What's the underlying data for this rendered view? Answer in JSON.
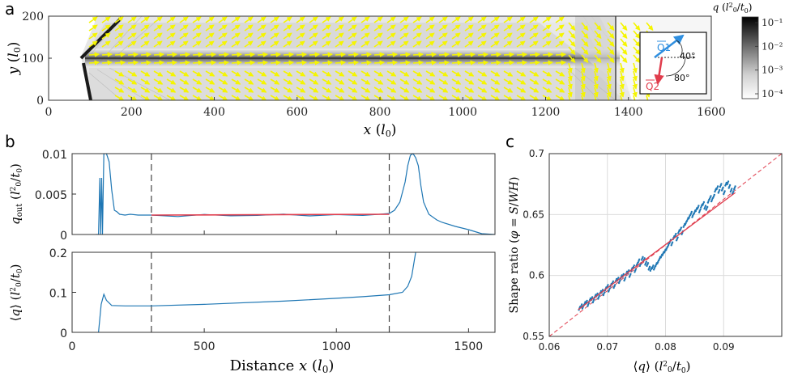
{
  "panels": {
    "a": {
      "letter": "a"
    },
    "b": {
      "letter": "b"
    },
    "c": {
      "letter": "c"
    }
  },
  "chart_data": [
    {
      "id": "a",
      "type": "heatmap",
      "xlabel": "x (l0)",
      "ylabel": "y (l0)",
      "xlim": [
        0,
        1600
      ],
      "ylim": [
        0,
        200
      ],
      "xticks": [
        "0",
        "200",
        "400",
        "600",
        "800",
        "1000",
        "1200",
        "1400",
        "1600"
      ],
      "yticks": [
        "0",
        "100",
        "200"
      ],
      "colorbar": {
        "label": "q (l0²/t0)",
        "scale": "log",
        "ticks": [
          "10⁻¹",
          "10⁻²",
          "10⁻³",
          "10⁻⁴"
        ]
      },
      "inset": {
        "q1_label": "Q1",
        "q2_label": "Q2",
        "angle1": "40°",
        "angle2": "80°",
        "q1_color": "#2f8fe0",
        "q2_color": "#e03c4c"
      },
      "arrow_color": "#f5f500"
    },
    {
      "id": "b-top",
      "type": "line",
      "ylabel": "q_out (l0²/t0)",
      "xlim": [
        0,
        1600
      ],
      "ylim": [
        0,
        0.01
      ],
      "yticks": [
        "0",
        "0.005",
        "0.01"
      ],
      "dashed_x": [
        300,
        1200
      ],
      "series": [
        {
          "color": "#1f77b4",
          "x": [
            90,
            100,
            105,
            108,
            112,
            115,
            120,
            125,
            130,
            140,
            150,
            160,
            170,
            180,
            200,
            220,
            250,
            300,
            400,
            500,
            600,
            700,
            800,
            900,
            1000,
            1100,
            1150,
            1200,
            1220,
            1240,
            1260,
            1270,
            1280,
            1290,
            1300,
            1310,
            1320,
            1330,
            1350,
            1380,
            1400,
            1450,
            1500,
            1550,
            1600
          ],
          "values": [
            0,
            0,
            0.007,
            0,
            0.007,
            0,
            0.01,
            0.01,
            0.01,
            0.009,
            0.0055,
            0.003,
            0.0028,
            0.0025,
            0.0024,
            0.0025,
            0.0024,
            0.0024,
            0.0024,
            0.0023,
            0.0024,
            0.0024,
            0.0024,
            0.0024,
            0.0024,
            0.0024,
            0.0024,
            0.0026,
            0.003,
            0.004,
            0.0065,
            0.0085,
            0.0098,
            0.01,
            0.0095,
            0.0085,
            0.006,
            0.004,
            0.0025,
            0.0018,
            0.0015,
            0.001,
            0.0006,
            0.0001,
            0
          ]
        },
        {
          "color": "#e03c4c",
          "x": [
            300,
            1200
          ],
          "values": [
            0.0024,
            0.0025
          ]
        }
      ]
    },
    {
      "id": "b-bottom",
      "type": "line",
      "xlabel": "Distance x (l0)",
      "ylabel": "⟨q⟩ (l0²/t0)",
      "xlim": [
        0,
        1600
      ],
      "ylim": [
        0,
        0.2
      ],
      "xticks": [
        "0",
        "500",
        "1000",
        "1500"
      ],
      "yticks": [
        "0",
        "0.1",
        "0.2"
      ],
      "dashed_x": [
        300,
        1200
      ],
      "series": [
        {
          "color": "#1f77b4",
          "x": [
            100,
            110,
            120,
            130,
            150,
            200,
            300,
            500,
            800,
            1000,
            1100,
            1200,
            1250,
            1270,
            1285,
            1300,
            1310
          ],
          "values": [
            0,
            0.07,
            0.095,
            0.08,
            0.067,
            0.066,
            0.066,
            0.07,
            0.078,
            0.085,
            0.089,
            0.094,
            0.1,
            0.115,
            0.14,
            0.2,
            0.22
          ]
        }
      ]
    },
    {
      "id": "c",
      "type": "scatter",
      "xlabel": "⟨q⟩ (l0²/t0)",
      "ylabel": "Shape ratio (φ = S/WH)",
      "xlim": [
        0.06,
        0.1
      ],
      "ylim": [
        0.55,
        0.7
      ],
      "xticks": [
        "0.06",
        "0.07",
        "0.08",
        "0.09"
      ],
      "yticks": [
        "0.55",
        "0.6",
        "0.65",
        "0.7"
      ],
      "grid": true,
      "points_color": "#1f77b4",
      "fit_line": {
        "color": "#e03c4c",
        "x": [
          0.065,
          0.092
        ],
        "values": [
          0.572,
          0.668
        ]
      },
      "identity_line": {
        "color": "#e03c4c",
        "style": "dashed",
        "x": [
          0.06,
          0.1
        ],
        "values": [
          0.55,
          0.7
        ]
      },
      "points": {
        "x": [
          0.0652,
          0.0655,
          0.0658,
          0.0661,
          0.0664,
          0.0667,
          0.067,
          0.0673,
          0.0676,
          0.0679,
          0.0682,
          0.0685,
          0.0688,
          0.0691,
          0.0694,
          0.0697,
          0.07,
          0.0703,
          0.0706,
          0.0709,
          0.0712,
          0.0715,
          0.0718,
          0.0721,
          0.0724,
          0.0727,
          0.073,
          0.0733,
          0.0736,
          0.0739,
          0.0742,
          0.0745,
          0.0748,
          0.0751,
          0.0754,
          0.0757,
          0.076,
          0.0763,
          0.0766,
          0.0769,
          0.0772,
          0.0775,
          0.0778,
          0.0781,
          0.0784,
          0.0787,
          0.079,
          0.0793,
          0.0796,
          0.0799,
          0.0802,
          0.0805,
          0.0808,
          0.0811,
          0.0814,
          0.0817,
          0.082,
          0.0823,
          0.0826,
          0.0829,
          0.0832,
          0.0835,
          0.0838,
          0.0841,
          0.0844,
          0.0847,
          0.085,
          0.0853,
          0.0856,
          0.0859,
          0.0862,
          0.0865,
          0.0868,
          0.0871,
          0.0874,
          0.0877,
          0.088,
          0.0883,
          0.0886,
          0.0889,
          0.0892,
          0.0895,
          0.0898,
          0.0901,
          0.0904,
          0.0907,
          0.091,
          0.0913,
          0.0916,
          0.0919
        ],
        "values": [
          0.573,
          0.575,
          0.574,
          0.577,
          0.578,
          0.576,
          0.58,
          0.581,
          0.579,
          0.583,
          0.584,
          0.582,
          0.586,
          0.587,
          0.585,
          0.589,
          0.591,
          0.588,
          0.592,
          0.594,
          0.591,
          0.596,
          0.597,
          0.595,
          0.599,
          0.6,
          0.597,
          0.602,
          0.603,
          0.6,
          0.605,
          0.607,
          0.604,
          0.609,
          0.612,
          0.609,
          0.614,
          0.613,
          0.61,
          0.609,
          0.606,
          0.605,
          0.607,
          0.606,
          0.609,
          0.611,
          0.614,
          0.616,
          0.618,
          0.62,
          0.622,
          0.625,
          0.628,
          0.626,
          0.631,
          0.633,
          0.63,
          0.636,
          0.638,
          0.635,
          0.641,
          0.643,
          0.646,
          0.648,
          0.651,
          0.649,
          0.652,
          0.654,
          0.656,
          0.653,
          0.657,
          0.659,
          0.656,
          0.655,
          0.661,
          0.664,
          0.662,
          0.665,
          0.67,
          0.672,
          0.669,
          0.674,
          0.671,
          0.668,
          0.675,
          0.676,
          0.673,
          0.67,
          0.668,
          0.672
        ]
      }
    }
  ]
}
